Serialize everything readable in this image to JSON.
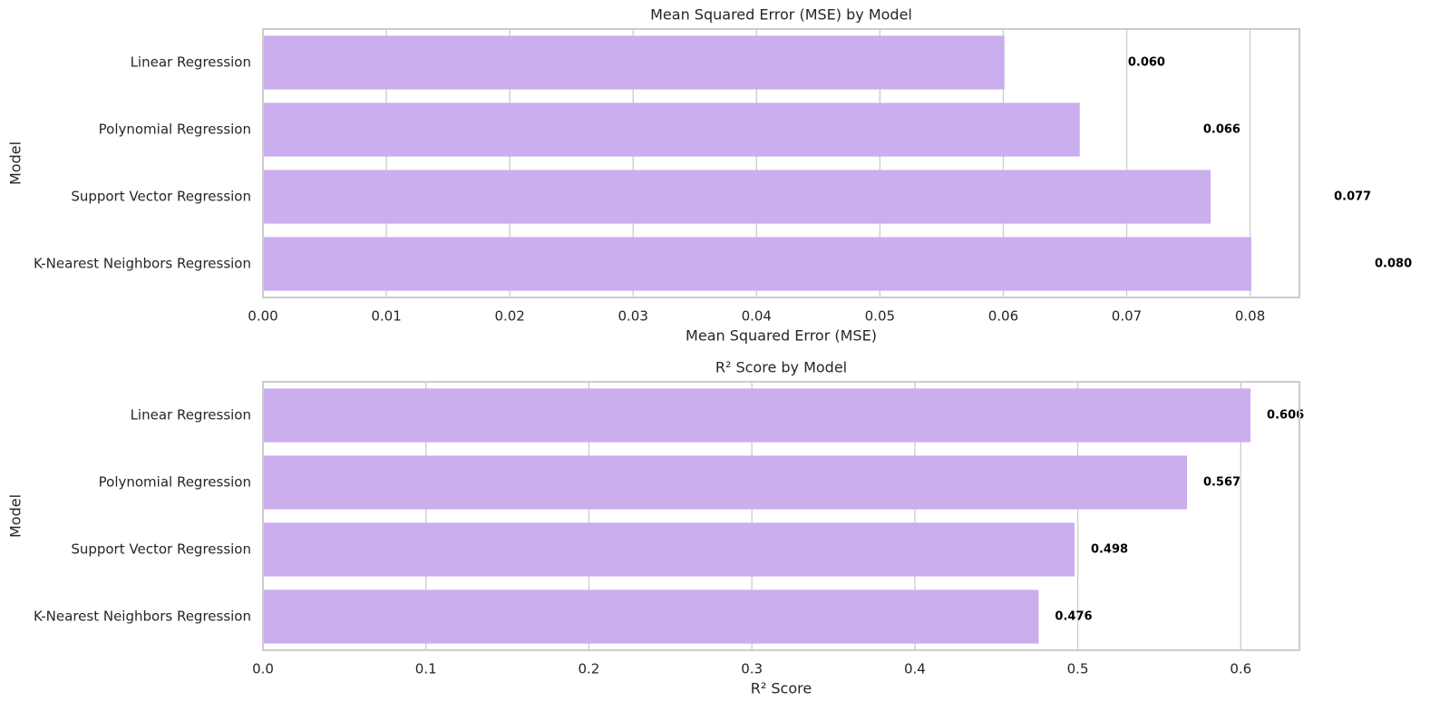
{
  "chart_data": [
    {
      "type": "barh",
      "title": "Mean Squared Error (MSE) by Model",
      "xlabel": "Mean Squared Error (MSE)",
      "ylabel": "Model",
      "categories": [
        "Linear Regression",
        "Polynomial Regression",
        "Support Vector Regression",
        "K-Nearest Neighbors Regression"
      ],
      "values": [
        0.0601,
        0.0662,
        0.0768,
        0.0801
      ],
      "value_labels": [
        "0.060",
        "0.066",
        "0.077",
        "0.080"
      ],
      "color": "#cbaeee",
      "xlim": [
        0,
        0.084
      ],
      "xticks": [
        {
          "value": 0,
          "label": "0.00"
        },
        {
          "value": 0.01,
          "label": "0.01"
        },
        {
          "value": 0.02,
          "label": "0.02"
        },
        {
          "value": 0.03,
          "label": "0.03"
        },
        {
          "value": 0.04,
          "label": "0.04"
        },
        {
          "value": 0.05,
          "label": "0.05"
        },
        {
          "value": 0.06,
          "label": "0.06"
        },
        {
          "value": 0.07,
          "label": "0.07"
        },
        {
          "value": 0.08,
          "label": "0.08"
        }
      ],
      "grid": true
    },
    {
      "type": "barh",
      "title": "R² Score by Model",
      "xlabel": "R² Score",
      "ylabel": "Model",
      "categories": [
        "Linear Regression",
        "Polynomial Regression",
        "Support Vector Regression",
        "K-Nearest Neighbors Regression"
      ],
      "values": [
        0.606,
        0.567,
        0.498,
        0.476
      ],
      "color": "#cbaeee",
      "xlim": [
        0,
        0.636
      ],
      "xticks": [
        {
          "value": 0,
          "label": "0.0"
        },
        0.1,
        0.2,
        0.3,
        0.4,
        0.5,
        0.6
      ],
      "grid": true
    }
  ]
}
